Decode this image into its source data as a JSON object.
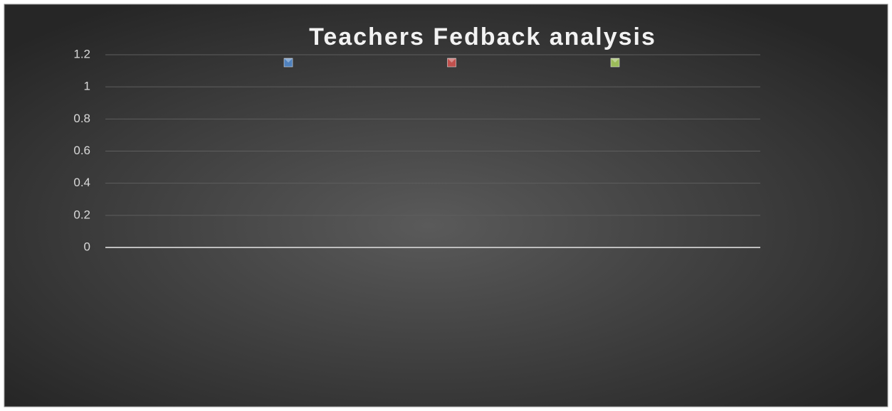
{
  "chart_data": {
    "type": "line",
    "title": "Teachers Fedback analysis",
    "series": [
      {
        "color": "#4f81bd",
        "values": []
      },
      {
        "color": "#c0504d",
        "values": []
      },
      {
        "color": "#9bbb59",
        "values": []
      }
    ],
    "ylim": [
      0,
      1.2
    ],
    "yticks": [
      0,
      0.2,
      0.4,
      0.6,
      0.8,
      1,
      1.2
    ],
    "grid": true
  }
}
